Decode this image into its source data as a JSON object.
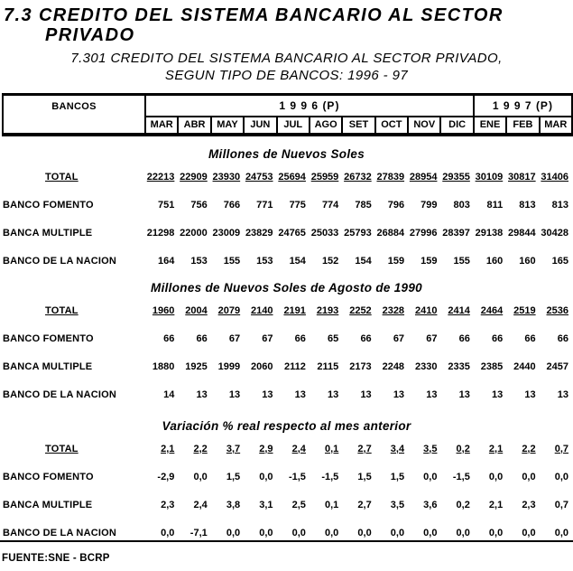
{
  "page": {
    "title_line1": "7.3 CREDITO DEL SISTEMA BANCARIO AL SECTOR",
    "title_line2": "PRIVADO",
    "subtitle_line1": "7.301 CREDITO DEL SISTEMA BANCARIO AL SECTOR PRIVADO,",
    "subtitle_line2": "SEGUN TIPO DE BANCOS: 1996 - 97",
    "source_note": "FUENTE:SNE - BCRP"
  },
  "colors": {
    "ink": "#000000",
    "paper": "#ffffff"
  },
  "table": {
    "corner_label": "BANCOS",
    "year_groups": [
      {
        "label": "1 9 9 6 (P)",
        "span": 10
      },
      {
        "label": "1 9 9 7 (P)",
        "span": 3
      }
    ],
    "months": [
      "MAR",
      "ABR",
      "MAY",
      "JUN",
      "JUL",
      "AGO",
      "SET",
      "OCT",
      "NOV",
      "DIC",
      "ENE",
      "FEB",
      "MAR"
    ],
    "sections": [
      {
        "title": "Millones de Nuevos Soles",
        "rows": [
          {
            "label": "TOTAL",
            "emphasis": true,
            "values": [
              "22213",
              "22909",
              "23930",
              "24753",
              "25694",
              "25959",
              "26732",
              "27839",
              "28954",
              "29355",
              "30109",
              "30817",
              "31406"
            ]
          },
          {
            "label": "BANCO FOMENTO",
            "emphasis": false,
            "values": [
              "751",
              "756",
              "766",
              "771",
              "775",
              "774",
              "785",
              "796",
              "799",
              "803",
              "811",
              "813",
              "813"
            ]
          },
          {
            "label": "BANCA MULTIPLE",
            "emphasis": false,
            "values": [
              "21298",
              "22000",
              "23009",
              "23829",
              "24765",
              "25033",
              "25793",
              "26884",
              "27996",
              "28397",
              "29138",
              "29844",
              "30428"
            ]
          },
          {
            "label": "BANCO DE LA NACION",
            "emphasis": false,
            "values": [
              "164",
              "153",
              "155",
              "153",
              "154",
              "152",
              "154",
              "159",
              "159",
              "155",
              "160",
              "160",
              "165"
            ]
          }
        ]
      },
      {
        "title": "Millones de Nuevos Soles de Agosto de 1990",
        "rows": [
          {
            "label": "TOTAL",
            "emphasis": true,
            "values": [
              "1960",
              "2004",
              "2079",
              "2140",
              "2191",
              "2193",
              "2252",
              "2328",
              "2410",
              "2414",
              "2464",
              "2519",
              "2536"
            ]
          },
          {
            "label": "BANCO FOMENTO",
            "emphasis": false,
            "values": [
              "66",
              "66",
              "67",
              "67",
              "66",
              "65",
              "66",
              "67",
              "67",
              "66",
              "66",
              "66",
              "66"
            ]
          },
          {
            "label": "BANCA MULTIPLE",
            "emphasis": false,
            "values": [
              "1880",
              "1925",
              "1999",
              "2060",
              "2112",
              "2115",
              "2173",
              "2248",
              "2330",
              "2335",
              "2385",
              "2440",
              "2457"
            ]
          },
          {
            "label": "BANCO DE LA NACION",
            "emphasis": false,
            "values": [
              "14",
              "13",
              "13",
              "13",
              "13",
              "13",
              "13",
              "13",
              "13",
              "13",
              "13",
              "13",
              "13"
            ]
          }
        ]
      },
      {
        "title": "Variación % real respecto al mes anterior",
        "rows": [
          {
            "label": "TOTAL",
            "emphasis": true,
            "values": [
              "2,1",
              "2,2",
              "3,7",
              "2,9",
              "2,4",
              "0,1",
              "2,7",
              "3,4",
              "3,5",
              "0,2",
              "2,1",
              "2,2",
              "0,7"
            ]
          },
          {
            "label": "BANCO FOMENTO",
            "emphasis": false,
            "values": [
              "-2,9",
              "0,0",
              "1,5",
              "0,0",
              "-1,5",
              "-1,5",
              "1,5",
              "1,5",
              "0,0",
              "-1,5",
              "0,0",
              "0,0",
              "0,0"
            ]
          },
          {
            "label": "BANCA MULTIPLE",
            "emphasis": false,
            "values": [
              "2,3",
              "2,4",
              "3,8",
              "3,1",
              "2,5",
              "0,1",
              "2,7",
              "3,5",
              "3,6",
              "0,2",
              "2,1",
              "2,3",
              "0,7"
            ]
          },
          {
            "label": "BANCO DE LA NACION",
            "emphasis": false,
            "values": [
              "0,0",
              "-7,1",
              "0,0",
              "0,0",
              "0,0",
              "0,0",
              "0,0",
              "0,0",
              "0,0",
              "0,0",
              "0,0",
              "0,0",
              "0,0"
            ]
          }
        ]
      }
    ]
  }
}
